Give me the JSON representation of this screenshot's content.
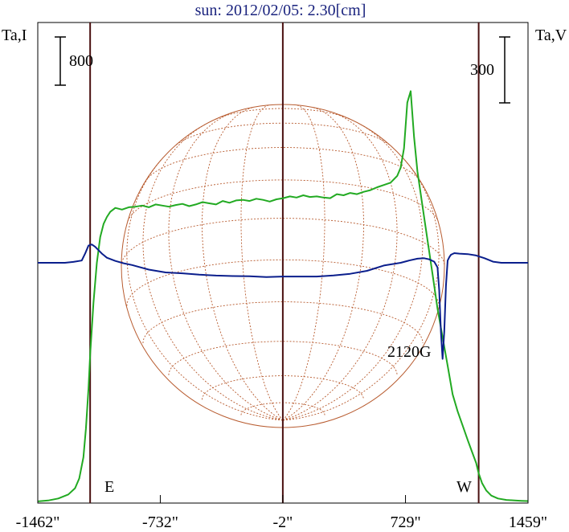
{
  "chart_data": {
    "type": "line",
    "title": "sun: 2012/02/05: 2.30[cm]",
    "left_axis_label": "Ta,I",
    "right_axis_label": "Ta,V",
    "left_scale_bar": "800",
    "right_scale_bar": "300",
    "x_ticks": [
      "-1462\"",
      "-732\"",
      "-2\"",
      "729\"",
      "1459\""
    ],
    "x_tick_values": [
      -1462,
      -732,
      -2,
      729,
      1459
    ],
    "xlim": [
      -1462,
      1459
    ],
    "vertical_lines": [
      -1150,
      -2,
      1165
    ],
    "limb_labels": {
      "east": "E",
      "west": "W"
    },
    "annotation": "2120G",
    "colors": {
      "intensity": "#22aa22",
      "polarization": "#0a1e8c",
      "grid": "#b85c30",
      "vlines": "#4a1010",
      "title": "#1a237e"
    },
    "series": [
      {
        "key": "intensity",
        "x": [
          -1462,
          -1400,
          -1340,
          -1280,
          -1240,
          -1215,
          -1190,
          -1175,
          -1160,
          -1150,
          -1130,
          -1110,
          -1090,
          -1070,
          -1050,
          -1030,
          -1000,
          -960,
          -920,
          -880,
          -840,
          -800,
          -760,
          -720,
          -680,
          -640,
          -600,
          -560,
          -520,
          -480,
          -440,
          -400,
          -360,
          -320,
          -280,
          -240,
          -200,
          -160,
          -120,
          -80,
          -40,
          0,
          40,
          80,
          120,
          160,
          200,
          240,
          280,
          320,
          360,
          400,
          440,
          480,
          520,
          560,
          600,
          640,
          680,
          700,
          720,
          740,
          760,
          780,
          800,
          830,
          860,
          890,
          920,
          950,
          980,
          1010,
          1040,
          1070,
          1100,
          1125,
          1150,
          1165,
          1185,
          1210,
          1240,
          1280,
          1330,
          1380,
          1420,
          1459
        ],
        "y": [
          30,
          45,
          80,
          150,
          260,
          430,
          800,
          1300,
          2000,
          2600,
          3500,
          4200,
          4650,
          4880,
          5000,
          5090,
          5160,
          5130,
          5170,
          5180,
          5200,
          5170,
          5220,
          5200,
          5180,
          5210,
          5230,
          5190,
          5220,
          5260,
          5240,
          5220,
          5280,
          5250,
          5290,
          5300,
          5280,
          5320,
          5300,
          5270,
          5310,
          5330,
          5360,
          5340,
          5380,
          5350,
          5360,
          5340,
          5330,
          5400,
          5380,
          5420,
          5400,
          5440,
          5470,
          5520,
          5560,
          5600,
          5720,
          5860,
          6200,
          7000,
          7200,
          6400,
          5800,
          5200,
          4600,
          4000,
          3400,
          2900,
          2400,
          1900,
          1600,
          1350,
          1100,
          900,
          700,
          520,
          350,
          220,
          130,
          80,
          55,
          45,
          40,
          35
        ]
      },
      {
        "key": "polarization",
        "x": [
          -1462,
          -1300,
          -1250,
          -1200,
          -1180,
          -1160,
          -1140,
          -1120,
          -1100,
          -1080,
          -1050,
          -1000,
          -950,
          -900,
          -850,
          -800,
          -700,
          -600,
          -500,
          -400,
          -300,
          -200,
          -100,
          -2,
          100,
          200,
          300,
          400,
          500,
          600,
          700,
          750,
          800,
          840,
          870,
          900,
          920,
          930,
          940,
          950,
          960,
          970,
          980,
          990,
          1000,
          1020,
          1050,
          1100,
          1150,
          1200,
          1250,
          1300,
          1350,
          1400,
          1459
        ],
        "y": [
          0,
          0,
          4,
          10,
          40,
          75,
          80,
          70,
          55,
          40,
          22,
          8,
          -2,
          -10,
          -20,
          -30,
          -42,
          -46,
          -52,
          -56,
          -58,
          -59,
          -62,
          -60,
          -60,
          -60,
          -55,
          -48,
          -35,
          -12,
          0,
          10,
          18,
          20,
          15,
          5,
          -20,
          -120,
          -300,
          -420,
          -300,
          -100,
          10,
          25,
          35,
          42,
          40,
          38,
          32,
          20,
          5,
          0,
          0,
          0,
          0
        ]
      }
    ],
    "left_ylim": [
      0,
      8400
    ],
    "right_ylim": [
      -1050,
      1050
    ]
  }
}
